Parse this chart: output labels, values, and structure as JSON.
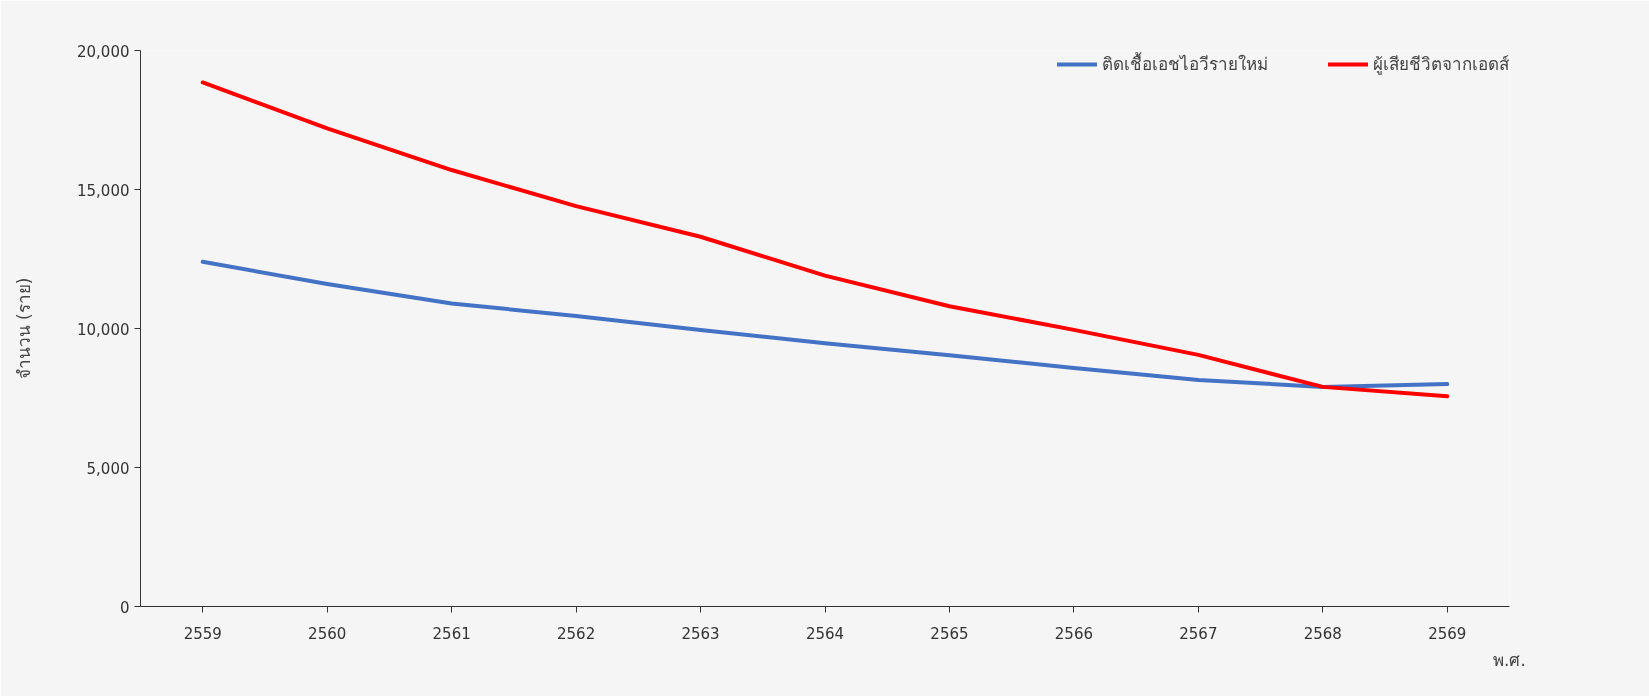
{
  "chart_data": {
    "type": "line",
    "xlabel": "พ.ศ.",
    "ylabel": "จำนวน (ราย)",
    "categories": [
      "2559",
      "2560",
      "2561",
      "2562",
      "2563",
      "2564",
      "2565",
      "2566",
      "2567",
      "2568",
      "2569"
    ],
    "series": [
      {
        "name": "ติดเชื้อเอชไอวีรายใหม่",
        "color": "#4472c4",
        "values": [
          12400,
          11600,
          10900,
          10450,
          9950,
          9470,
          9040,
          8580,
          8150,
          7900,
          8000
        ]
      },
      {
        "name": "ผู้เสียชีวิตจากเอดส์",
        "color": "#ff0000",
        "values": [
          18850,
          17200,
          15700,
          14400,
          13300,
          11900,
          10800,
          9950,
          9050,
          7900,
          7560
        ]
      }
    ],
    "ylim": [
      0,
      20000
    ],
    "yticks": [
      {
        "value": 0,
        "label": "0"
      },
      {
        "value": 5000,
        "label": "5,000"
      },
      {
        "value": 10000,
        "label": "10,000"
      },
      {
        "value": 15000,
        "label": "15,000"
      },
      {
        "value": 20000,
        "label": "20,000"
      }
    ],
    "grid": false,
    "legend": "top right",
    "marker": "none",
    "line_style": "solid"
  }
}
